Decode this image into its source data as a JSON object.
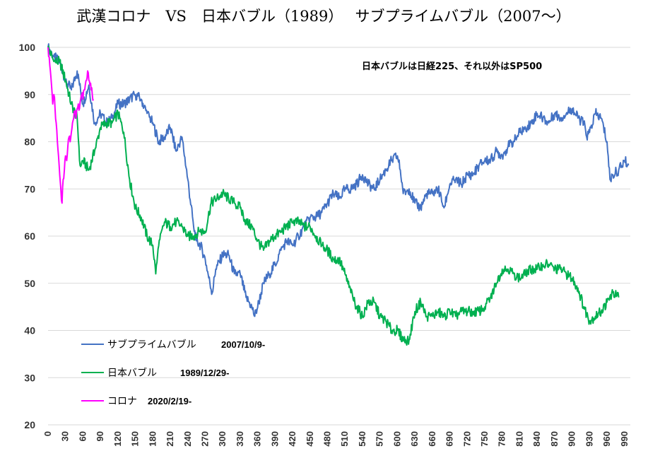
{
  "chart_data": {
    "type": "line",
    "title": "武漢コロナ　VS　日本バブル（1989）　 サブプライムバブル（2007～）",
    "annotation": "日本バブルは日経225、それ以外はSP500",
    "xlabel": "",
    "ylabel": "",
    "xlim": [
      0,
      1000
    ],
    "ylim": [
      20,
      100
    ],
    "yticks": [
      20,
      30,
      40,
      50,
      60,
      70,
      80,
      90,
      100
    ],
    "xticks": [
      0,
      30,
      60,
      90,
      120,
      150,
      180,
      210,
      240,
      270,
      300,
      330,
      360,
      390,
      420,
      450,
      480,
      510,
      540,
      570,
      600,
      630,
      660,
      690,
      720,
      750,
      780,
      810,
      840,
      870,
      900,
      930,
      960,
      990
    ],
    "grid": "horizontal",
    "legend_position": "bottom-left",
    "series": [
      {
        "name": "サブプライムバブル",
        "date_label": "2007/10/9-",
        "color": "#4472C4",
        "points": [
          [
            0,
            100
          ],
          [
            10,
            98
          ],
          [
            20,
            97
          ],
          [
            30,
            93
          ],
          [
            40,
            91
          ],
          [
            50,
            95
          ],
          [
            60,
            88
          ],
          [
            70,
            92
          ],
          [
            80,
            84
          ],
          [
            90,
            86
          ],
          [
            100,
            84
          ],
          [
            110,
            85
          ],
          [
            120,
            88
          ],
          [
            130,
            88
          ],
          [
            140,
            89
          ],
          [
            150,
            90
          ],
          [
            160,
            89
          ],
          [
            170,
            86
          ],
          [
            180,
            84
          ],
          [
            190,
            80
          ],
          [
            200,
            81
          ],
          [
            210,
            83
          ],
          [
            220,
            78
          ],
          [
            230,
            81
          ],
          [
            240,
            72
          ],
          [
            250,
            62
          ],
          [
            255,
            59
          ],
          [
            262,
            58
          ],
          [
            270,
            55
          ],
          [
            278,
            50
          ],
          [
            282,
            48
          ],
          [
            288,
            53
          ],
          [
            300,
            56
          ],
          [
            310,
            56
          ],
          [
            320,
            52
          ],
          [
            330,
            52
          ],
          [
            340,
            47
          ],
          [
            350,
            45
          ],
          [
            355,
            43
          ],
          [
            362,
            46
          ],
          [
            370,
            50
          ],
          [
            380,
            52
          ],
          [
            390,
            54
          ],
          [
            400,
            57
          ],
          [
            410,
            59
          ],
          [
            420,
            58
          ],
          [
            430,
            60
          ],
          [
            440,
            62
          ],
          [
            450,
            64
          ],
          [
            460,
            64
          ],
          [
            470,
            65
          ],
          [
            480,
            67
          ],
          [
            490,
            69
          ],
          [
            500,
            68
          ],
          [
            510,
            70
          ],
          [
            520,
            70
          ],
          [
            530,
            71
          ],
          [
            540,
            73
          ],
          [
            550,
            71
          ],
          [
            560,
            70
          ],
          [
            570,
            72
          ],
          [
            580,
            74
          ],
          [
            590,
            76
          ],
          [
            600,
            77
          ],
          [
            605,
            74
          ],
          [
            610,
            69
          ],
          [
            620,
            70
          ],
          [
            630,
            67
          ],
          [
            640,
            66
          ],
          [
            650,
            69
          ],
          [
            660,
            69
          ],
          [
            670,
            70
          ],
          [
            680,
            66
          ],
          [
            690,
            71
          ],
          [
            700,
            72
          ],
          [
            710,
            71
          ],
          [
            720,
            73
          ],
          [
            730,
            73
          ],
          [
            740,
            75
          ],
          [
            750,
            76
          ],
          [
            760,
            76
          ],
          [
            770,
            78
          ],
          [
            780,
            77
          ],
          [
            790,
            79
          ],
          [
            800,
            80
          ],
          [
            810,
            82
          ],
          [
            820,
            83
          ],
          [
            830,
            84
          ],
          [
            840,
            86
          ],
          [
            850,
            85
          ],
          [
            860,
            84
          ],
          [
            870,
            86
          ],
          [
            880,
            85
          ],
          [
            890,
            86
          ],
          [
            900,
            87
          ],
          [
            910,
            85
          ],
          [
            920,
            84
          ],
          [
            925,
            81
          ],
          [
            930,
            82
          ],
          [
            940,
            86
          ],
          [
            950,
            85
          ],
          [
            960,
            80
          ],
          [
            965,
            72
          ],
          [
            970,
            73
          ],
          [
            980,
            74
          ],
          [
            990,
            76
          ],
          [
            997,
            75
          ]
        ]
      },
      {
        "name": "日本バブル",
        "date_label": "1989/12/29-",
        "color": "#00B050",
        "points": [
          [
            0,
            100
          ],
          [
            10,
            97
          ],
          [
            20,
            97
          ],
          [
            30,
            93
          ],
          [
            40,
            88
          ],
          [
            50,
            85
          ],
          [
            55,
            75
          ],
          [
            60,
            76
          ],
          [
            70,
            74
          ],
          [
            80,
            78
          ],
          [
            90,
            83
          ],
          [
            100,
            84
          ],
          [
            110,
            84
          ],
          [
            120,
            86
          ],
          [
            130,
            82
          ],
          [
            140,
            72
          ],
          [
            150,
            66
          ],
          [
            160,
            64
          ],
          [
            170,
            60
          ],
          [
            180,
            58
          ],
          [
            185,
            52
          ],
          [
            190,
            58
          ],
          [
            200,
            63
          ],
          [
            210,
            62
          ],
          [
            220,
            63
          ],
          [
            230,
            62
          ],
          [
            240,
            60
          ],
          [
            250,
            60
          ],
          [
            260,
            61
          ],
          [
            270,
            61
          ],
          [
            280,
            67
          ],
          [
            290,
            68
          ],
          [
            300,
            69
          ],
          [
            310,
            68
          ],
          [
            320,
            67
          ],
          [
            330,
            66
          ],
          [
            340,
            63
          ],
          [
            350,
            62
          ],
          [
            360,
            59
          ],
          [
            370,
            57
          ],
          [
            380,
            59
          ],
          [
            390,
            60
          ],
          [
            400,
            61
          ],
          [
            410,
            62
          ],
          [
            420,
            63
          ],
          [
            430,
            63
          ],
          [
            440,
            62
          ],
          [
            450,
            62
          ],
          [
            460,
            60
          ],
          [
            470,
            58
          ],
          [
            480,
            57
          ],
          [
            490,
            55
          ],
          [
            500,
            55
          ],
          [
            510,
            52
          ],
          [
            520,
            48
          ],
          [
            530,
            45
          ],
          [
            540,
            43
          ],
          [
            550,
            46
          ],
          [
            560,
            46
          ],
          [
            570,
            43
          ],
          [
            580,
            42
          ],
          [
            590,
            40
          ],
          [
            600,
            40
          ],
          [
            610,
            38
          ],
          [
            620,
            38
          ],
          [
            630,
            44
          ],
          [
            640,
            46
          ],
          [
            650,
            43
          ],
          [
            660,
            43
          ],
          [
            670,
            44
          ],
          [
            680,
            43
          ],
          [
            690,
            44
          ],
          [
            700,
            43
          ],
          [
            710,
            44
          ],
          [
            720,
            44
          ],
          [
            730,
            44
          ],
          [
            740,
            44
          ],
          [
            750,
            45
          ],
          [
            760,
            47
          ],
          [
            770,
            50
          ],
          [
            780,
            53
          ],
          [
            790,
            53
          ],
          [
            800,
            52
          ],
          [
            810,
            51
          ],
          [
            820,
            52
          ],
          [
            830,
            53
          ],
          [
            840,
            53
          ],
          [
            850,
            54
          ],
          [
            860,
            54
          ],
          [
            870,
            53
          ],
          [
            880,
            53
          ],
          [
            890,
            52
          ],
          [
            900,
            51
          ],
          [
            910,
            49
          ],
          [
            920,
            45
          ],
          [
            930,
            42
          ],
          [
            940,
            43
          ],
          [
            950,
            44
          ],
          [
            960,
            46
          ],
          [
            970,
            48
          ],
          [
            980,
            47
          ]
        ]
      },
      {
        "name": "コロナ",
        "date_label": "2020/2/19-",
        "color": "#FF00FF",
        "points": [
          [
            0,
            100
          ],
          [
            2,
            98
          ],
          [
            4,
            95
          ],
          [
            6,
            92
          ],
          [
            8,
            88
          ],
          [
            10,
            90
          ],
          [
            12,
            87
          ],
          [
            14,
            84
          ],
          [
            16,
            80
          ],
          [
            18,
            77
          ],
          [
            20,
            73
          ],
          [
            22,
            70
          ],
          [
            24,
            67
          ],
          [
            26,
            72
          ],
          [
            28,
            74
          ],
          [
            30,
            77
          ],
          [
            32,
            76
          ],
          [
            34,
            79
          ],
          [
            36,
            81
          ],
          [
            38,
            80
          ],
          [
            40,
            82
          ],
          [
            42,
            84
          ],
          [
            44,
            85
          ],
          [
            46,
            86
          ],
          [
            48,
            85
          ],
          [
            50,
            87
          ],
          [
            52,
            88
          ],
          [
            54,
            87
          ],
          [
            56,
            89
          ],
          [
            58,
            90
          ],
          [
            60,
            89
          ],
          [
            62,
            91
          ],
          [
            64,
            92
          ],
          [
            66,
            93
          ],
          [
            68,
            95
          ],
          [
            70,
            93
          ],
          [
            72,
            92
          ],
          [
            74,
            91
          ],
          [
            76,
            90
          ],
          [
            78,
            89
          ]
        ]
      }
    ]
  }
}
